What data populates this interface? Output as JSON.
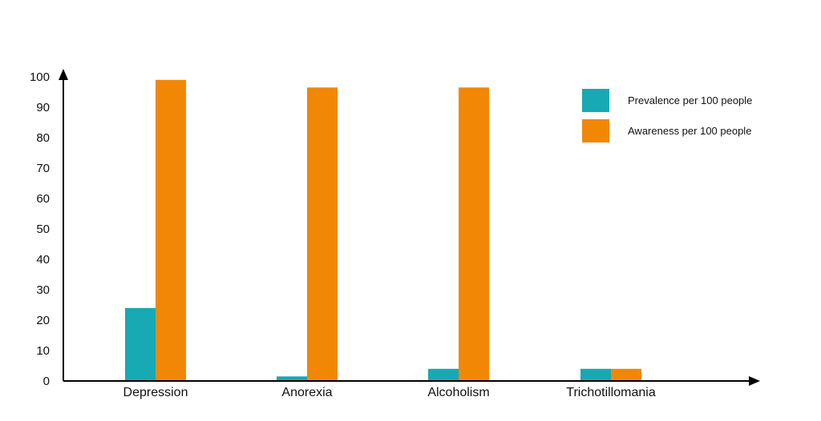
{
  "chart_data": {
    "type": "bar",
    "categories": [
      "Depression",
      "Anorexia",
      "Alcoholism",
      "Trichotillomania"
    ],
    "series": [
      {
        "name": "Prevalence per 100 people",
        "values": [
          24,
          1.5,
          4,
          4
        ],
        "color": "#17a9b4"
      },
      {
        "name": "Awareness per 100 people",
        "values": [
          99,
          96.5,
          96.5,
          4
        ],
        "color": "#f28705"
      }
    ],
    "yticks": [
      0,
      10,
      20,
      30,
      40,
      50,
      60,
      70,
      80,
      90,
      100
    ],
    "ylim": [
      0,
      100
    ],
    "grid": false,
    "legend_position": "top-right"
  }
}
